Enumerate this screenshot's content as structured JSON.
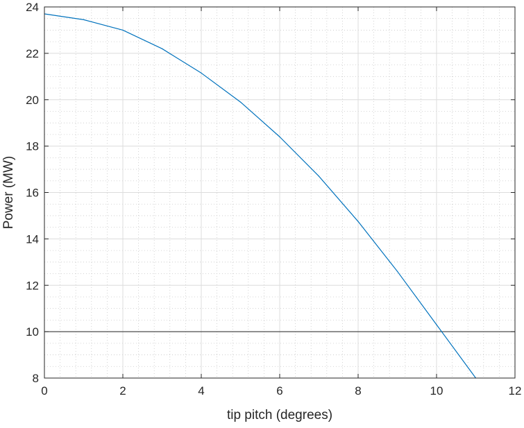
{
  "chart_data": {
    "type": "line",
    "title": "",
    "xlabel": "tip pitch (degrees)",
    "ylabel": "Power (MW)",
    "xlim": [
      0,
      12
    ],
    "ylim": [
      8,
      24
    ],
    "x_ticks": [
      0,
      2,
      4,
      6,
      8,
      10,
      12
    ],
    "y_ticks": [
      8,
      10,
      12,
      14,
      16,
      18,
      20,
      22,
      24
    ],
    "x_tick_labels": [
      "0",
      "2",
      "4",
      "6",
      "8",
      "10",
      "12"
    ],
    "y_tick_labels": [
      "8",
      "10",
      "12",
      "14",
      "16",
      "18",
      "20",
      "22",
      "24"
    ],
    "grid": true,
    "minor_grid": true,
    "series": [
      {
        "color": "#0072bd",
        "x": [
          0,
          1,
          2,
          3,
          4,
          5,
          6,
          7,
          8,
          9,
          10,
          11
        ],
        "values": [
          23.7,
          23.45,
          23.0,
          22.2,
          21.15,
          19.9,
          18.4,
          16.7,
          14.75,
          12.6,
          10.3,
          8.0
        ]
      }
    ],
    "reference_lines": [
      {
        "axis": "y",
        "value": 10,
        "color": "#262626"
      }
    ]
  }
}
